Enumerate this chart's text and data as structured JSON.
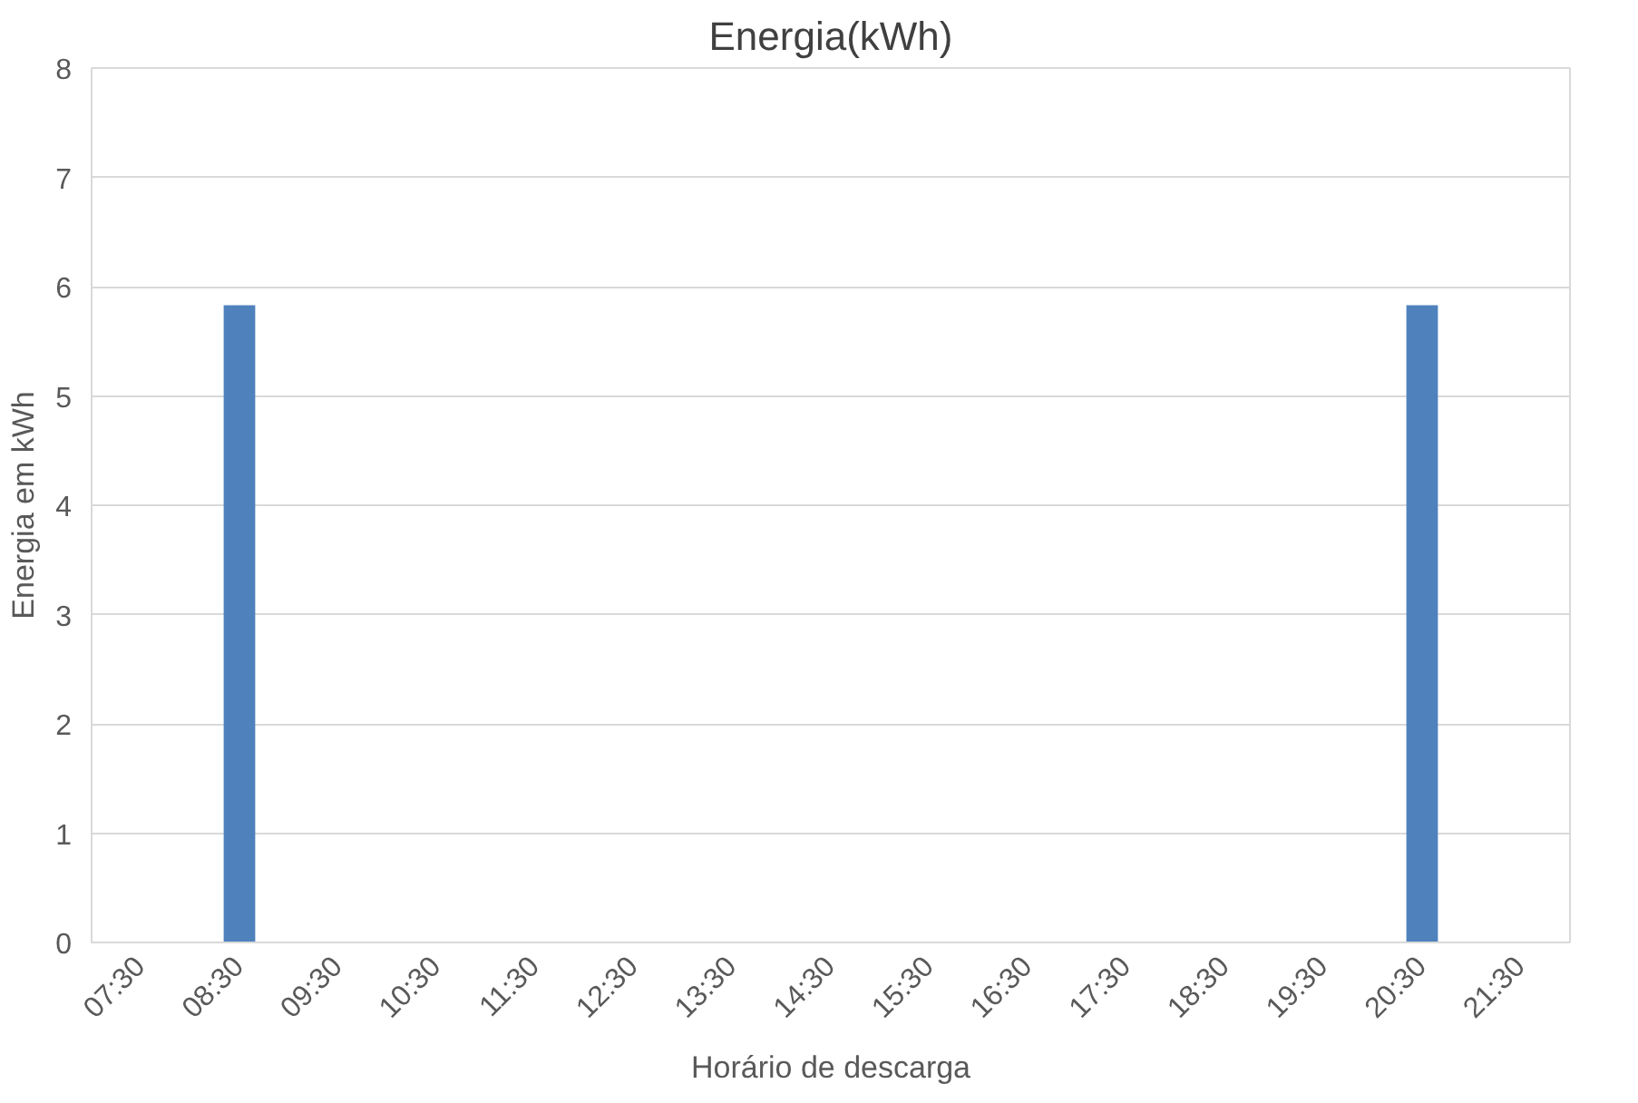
{
  "chart_data": {
    "type": "bar",
    "title": "Energia(kWh)",
    "xlabel": "Horário de descarga",
    "ylabel": "Energia em kWh",
    "categories": [
      "07:30",
      "08:30",
      "09:30",
      "10:30",
      "11:30",
      "12:30",
      "13:30",
      "14:30",
      "15:30",
      "16:30",
      "17:30",
      "18:30",
      "19:30",
      "20:30",
      "21:30"
    ],
    "values": [
      0,
      5.83,
      0,
      0,
      0,
      0,
      0,
      0,
      0,
      0,
      0,
      0,
      0,
      5.83,
      0
    ],
    "color": "#4f81bd",
    "ylim": [
      0,
      8
    ],
    "yticks": [
      0,
      1,
      2,
      3,
      4,
      5,
      6,
      7,
      8
    ],
    "grid": "y"
  }
}
